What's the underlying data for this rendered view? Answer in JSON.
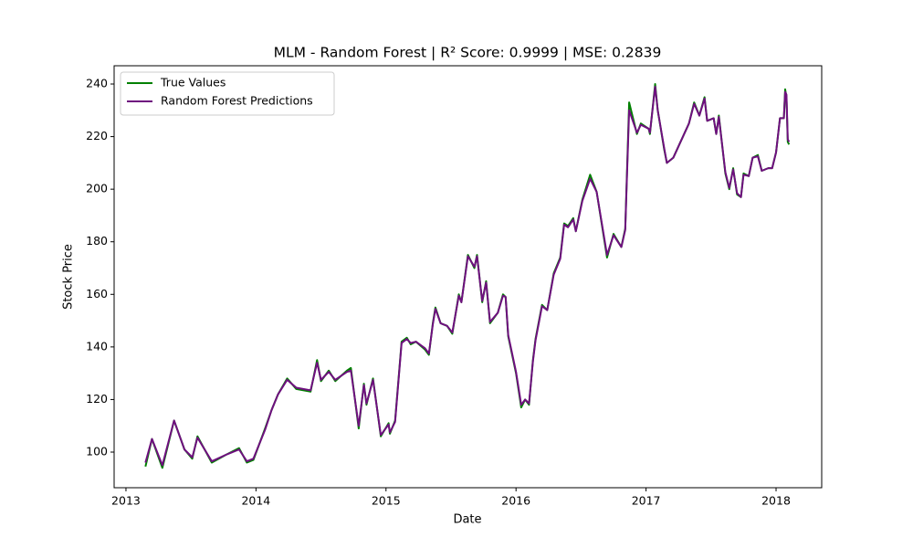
{
  "chart_data": {
    "type": "line",
    "title": "MLM - Random Forest | R² Score: 0.9999 | MSE: 0.2839",
    "x_label": "Date",
    "y_label": "Stock Price",
    "x": [
      2013.15,
      2013.2,
      2013.28,
      2013.37,
      2013.45,
      2013.51,
      2013.55,
      2013.66,
      2013.77,
      2013.87,
      2013.93,
      2013.98,
      2014.07,
      2014.12,
      2014.17,
      2014.24,
      2014.31,
      2014.42,
      2014.47,
      2014.5,
      2014.56,
      2014.61,
      2014.7,
      2014.73,
      2014.79,
      2014.83,
      2014.85,
      2014.9,
      2014.96,
      2015.02,
      2015.03,
      2015.07,
      2015.12,
      2015.16,
      2015.19,
      2015.23,
      2015.3,
      2015.33,
      2015.36,
      2015.38,
      2015.42,
      2015.47,
      2015.51,
      2015.56,
      2015.58,
      2015.63,
      2015.68,
      2015.7,
      2015.74,
      2015.77,
      2015.8,
      2015.86,
      2015.9,
      2015.92,
      2015.94,
      2016.0,
      2016.04,
      2016.07,
      2016.1,
      2016.13,
      2016.15,
      2016.2,
      2016.24,
      2016.29,
      2016.34,
      2016.37,
      2016.4,
      2016.44,
      2016.46,
      2016.51,
      2016.57,
      2016.62,
      2016.7,
      2016.75,
      2016.81,
      2016.84,
      2016.85,
      2016.87,
      2016.93,
      2016.96,
      2017.02,
      2017.03,
      2017.07,
      2017.09,
      2017.14,
      2017.16,
      2017.21,
      2017.33,
      2017.37,
      2017.41,
      2017.45,
      2017.47,
      2017.52,
      2017.54,
      2017.56,
      2017.61,
      2017.64,
      2017.67,
      2017.7,
      2017.73,
      2017.75,
      2017.79,
      2017.82,
      2017.86,
      2017.89,
      2017.94,
      2017.97,
      2018.0,
      2018.03,
      2018.06,
      2018.07,
      2018.08,
      2018.09,
      2018.1
    ],
    "series": [
      {
        "name": "True Values",
        "color": "#008000",
        "values": [
          94.5,
          105,
          94,
          112,
          101,
          97.5,
          106,
          96,
          99,
          101.5,
          96,
          97,
          109,
          116,
          122,
          128,
          124,
          123,
          135,
          127,
          131,
          127,
          131,
          132,
          109,
          126,
          118,
          128,
          106,
          111,
          107,
          112,
          142,
          143.5,
          141,
          142,
          139,
          137,
          149,
          155,
          149,
          148,
          145,
          160,
          157,
          175,
          170,
          175,
          157,
          165,
          149,
          153,
          160,
          159,
          144,
          130,
          117,
          120,
          118,
          135,
          143,
          156,
          154,
          168,
          174,
          187,
          186,
          189,
          184,
          196,
          205.5,
          199,
          174,
          183,
          178,
          185,
          201,
          233,
          221,
          225,
          223,
          221,
          240,
          230,
          215,
          210,
          212,
          225,
          233,
          228,
          235,
          226,
          227,
          221,
          228,
          206,
          200,
          208,
          198,
          197,
          206,
          205,
          212,
          213,
          207,
          208,
          208,
          214,
          227,
          227,
          238,
          235,
          218,
          217
        ]
      },
      {
        "name": "Random Forest Predictions",
        "color": "#6f0f7f",
        "values": [
          96,
          105,
          95,
          112,
          101,
          98,
          105.5,
          96.5,
          99,
          101,
          96.5,
          97.5,
          108.5,
          116,
          122,
          127.5,
          124.5,
          123.5,
          134,
          127.5,
          130.5,
          127.5,
          130.5,
          131,
          110,
          125.5,
          118.5,
          127.5,
          106.5,
          110.5,
          107.5,
          111.5,
          141.5,
          143,
          141.5,
          142,
          139.5,
          137.5,
          148.5,
          154.5,
          149,
          148,
          145.5,
          159.5,
          157,
          174.5,
          170.5,
          174.5,
          157.5,
          164.5,
          149.5,
          153,
          159.5,
          159,
          144.5,
          130.5,
          118,
          120,
          118.5,
          134.5,
          142.5,
          155.5,
          154,
          167.5,
          173.5,
          186.5,
          185.5,
          188.5,
          184,
          195.5,
          204,
          199,
          175,
          182.5,
          178,
          184.5,
          200,
          230,
          221.5,
          224.5,
          223,
          221.5,
          239,
          230,
          215.5,
          210,
          212,
          225,
          232.5,
          228,
          234.5,
          226,
          227,
          221,
          227.5,
          206.5,
          200.5,
          207.5,
          198.5,
          197,
          205.5,
          205,
          212,
          212.5,
          207,
          208,
          208,
          214,
          227,
          227,
          237,
          236,
          219,
          218
        ]
      }
    ],
    "xlim": [
      2012.909,
      2018.351
    ],
    "xticks": [
      2013,
      2014,
      2015,
      2016,
      2017,
      2018
    ],
    "ylim": [
      86.45,
      246.95
    ],
    "yticks": [
      100,
      120,
      140,
      160,
      180,
      200,
      220,
      240
    ],
    "legend": "upper left"
  }
}
